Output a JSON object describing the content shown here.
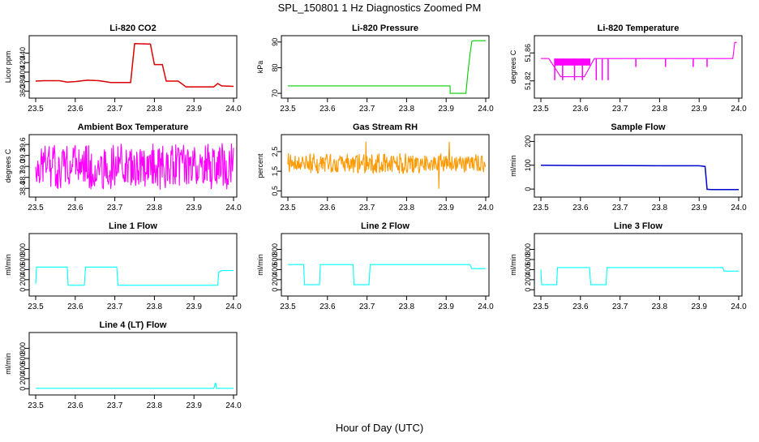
{
  "figure": {
    "title": "SPL_150801  1 Hz Diagnostics Zoomed PM",
    "xlabel": "Hour of Day (UTC)"
  },
  "chart_data": [
    {
      "type": "line",
      "title": "Li-820 CO2",
      "ylabel": "Licor ppm",
      "color": "#dd0000",
      "xlim": [
        23.5,
        24.0
      ],
      "ylim": [
        352,
        470
      ],
      "xticks": [
        "23.5",
        "23.6",
        "23.7",
        "23.8",
        "23.9",
        "24.0"
      ],
      "yticks": [
        360,
        380,
        400,
        420,
        440
      ],
      "x": [
        23.5,
        23.52,
        23.56,
        23.58,
        23.6,
        23.63,
        23.66,
        23.69,
        23.74,
        23.75,
        23.79,
        23.8,
        23.82,
        23.83,
        23.86,
        23.88,
        23.9,
        23.95,
        23.96,
        23.97,
        24.0
      ],
      "y": [
        381,
        382,
        382,
        379,
        380,
        383,
        382,
        378,
        378,
        460,
        459,
        416,
        416,
        381,
        381,
        369,
        369,
        369,
        376,
        371,
        370
      ]
    },
    {
      "type": "line",
      "title": "Li-820 Pressure",
      "ylabel": "kPa",
      "color": "#00cc00",
      "xlim": [
        23.5,
        24.0
      ],
      "ylim": [
        69.4,
        91.2
      ],
      "xticks": [
        "23.5",
        "23.6",
        "23.7",
        "23.8",
        "23.9",
        "24.0"
      ],
      "yticks": [
        70,
        80,
        90
      ],
      "x": [
        23.5,
        23.6,
        23.7,
        23.8,
        23.9,
        23.91,
        23.91,
        23.95,
        23.955,
        23.96,
        23.965,
        23.97,
        23.99,
        24.0
      ],
      "y": [
        72.9,
        72.9,
        72.9,
        72.9,
        72.9,
        72.9,
        70.0,
        70.0,
        78.0,
        85.0,
        90.3,
        90.5,
        90.5,
        90.5
      ]
    },
    {
      "type": "line",
      "title": "Li-820 Temperature",
      "ylabel": "degrees C",
      "color": "#ff00ff",
      "xlim": [
        23.5,
        24.0
      ],
      "ylim": [
        51.8,
        51.88
      ],
      "xticks": [
        "23.5",
        "23.6",
        "23.7",
        "23.8",
        "23.9",
        "24.0"
      ],
      "yticks": [
        "51.82",
        "51.86"
      ],
      "x": [
        23.5,
        23.52,
        23.55,
        23.58,
        23.61,
        23.635,
        23.65,
        23.665,
        23.68,
        23.74,
        23.815,
        23.885,
        23.92,
        23.985,
        23.99,
        23.995
      ],
      "y": [
        51.852,
        51.852,
        51.826,
        51.826,
        51.826,
        51.852,
        51.852,
        51.852,
        51.852,
        51.852,
        51.852,
        51.852,
        51.852,
        51.852,
        51.875,
        51.875
      ]
    },
    {
      "type": "line",
      "title": "Ambient Box Temperature",
      "ylabel": "degrees C",
      "color": "#ff00ff",
      "xlim": [
        23.5,
        24.0
      ],
      "ylim": [
        38.25,
        39.78
      ],
      "xticks": [
        "23.5",
        "23.6",
        "23.7",
        "23.8",
        "23.9",
        "24.0"
      ],
      "yticks": [
        "38.4",
        "38.7",
        "39.0",
        "39.3",
        "39.6"
      ],
      "x": [
        23.5,
        24.0
      ],
      "y": [
        38.5,
        39.5
      ],
      "noise": "dense oscillation between 38.4 and 39.6"
    },
    {
      "type": "line",
      "title": "Gas Stream RH",
      "ylabel": "percent",
      "color": "#ff9900",
      "xlim": [
        23.5,
        24.0
      ],
      "ylim": [
        0.35,
        3.2
      ],
      "xticks": [
        "23.5",
        "23.6",
        "23.7",
        "23.8",
        "23.9",
        "24.0"
      ],
      "yticks": [
        "0.5",
        "1.5",
        "2.5"
      ],
      "x": [
        23.5,
        24.0
      ],
      "y": [
        1.5,
        2.3
      ],
      "noise": "dense oscillation between 1.5 and 2.3"
    },
    {
      "type": "line",
      "title": "Sample Flow",
      "ylabel": "ml/min",
      "color": "#0000cc",
      "xlim": [
        23.5,
        24.0
      ],
      "ylim": [
        -20,
        215
      ],
      "xticks": [
        "23.5",
        "23.6",
        "23.7",
        "23.8",
        "23.9",
        "24.0"
      ],
      "yticks": [
        0,
        100,
        200
      ],
      "x": [
        23.5,
        23.6,
        23.7,
        23.8,
        23.9,
        23.915,
        23.92,
        23.93,
        24.0
      ],
      "y": [
        100,
        99,
        99,
        98,
        98,
        95,
        -1,
        -2,
        -2
      ]
    },
    {
      "type": "line",
      "title": "Line 1 Flow",
      "ylabel": "ml/min",
      "color": "#00ffff",
      "xlim": [
        23.5,
        24.0
      ],
      "ylim": [
        -60,
        1050
      ],
      "xticks": [
        "23.5",
        "23.6",
        "23.7",
        "23.8",
        "23.9",
        "24.0"
      ],
      "yticks": [
        0,
        200,
        400,
        600,
        800
      ],
      "x": [
        23.5,
        23.502,
        23.58,
        23.582,
        23.623,
        23.626,
        23.705,
        23.708,
        23.96,
        23.963,
        23.97,
        24.0
      ],
      "y": [
        120,
        450,
        450,
        90,
        90,
        450,
        450,
        90,
        90,
        350,
        380,
        380
      ]
    },
    {
      "type": "line",
      "title": "Line 2 Flow",
      "ylabel": "ml/min",
      "color": "#00ffff",
      "xlim": [
        23.5,
        24.0
      ],
      "ylim": [
        -60,
        1050
      ],
      "xticks": [
        "23.5",
        "23.6",
        "23.7",
        "23.8",
        "23.9",
        "24.0"
      ],
      "yticks": [
        0,
        200,
        400,
        600,
        800
      ],
      "x": [
        23.5,
        23.54,
        23.542,
        23.58,
        23.582,
        23.665,
        23.667,
        23.705,
        23.708,
        23.96,
        23.965,
        24.0
      ],
      "y": [
        500,
        500,
        100,
        100,
        500,
        500,
        100,
        100,
        500,
        500,
        420,
        420
      ]
    },
    {
      "type": "line",
      "title": "Line 3 Flow",
      "ylabel": "ml/min",
      "color": "#00ffff",
      "xlim": [
        23.5,
        24.0
      ],
      "ylim": [
        -60,
        1050
      ],
      "xticks": [
        "23.5",
        "23.6",
        "23.7",
        "23.8",
        "23.9",
        "24.0"
      ],
      "yticks": [
        0,
        200,
        400,
        600,
        800
      ],
      "x": [
        23.5,
        23.502,
        23.54,
        23.542,
        23.623,
        23.626,
        23.665,
        23.667,
        23.96,
        23.963,
        24.0
      ],
      "y": [
        400,
        100,
        100,
        440,
        440,
        100,
        100,
        440,
        440,
        370,
        370
      ]
    },
    {
      "type": "line",
      "title": "Line 4 (LT) Flow",
      "ylabel": "ml/min",
      "color": "#00ffff",
      "xlim": [
        23.5,
        24.0
      ],
      "ylim": [
        -60,
        1050
      ],
      "xticks": [
        "23.5",
        "23.6",
        "23.7",
        "23.8",
        "23.9",
        "24.0"
      ],
      "yticks": [
        0,
        200,
        400,
        600,
        800
      ],
      "x": [
        23.5,
        23.95,
        23.955,
        23.957,
        23.96,
        24.0
      ],
      "y": [
        8,
        8,
        120,
        8,
        8,
        8
      ]
    }
  ]
}
